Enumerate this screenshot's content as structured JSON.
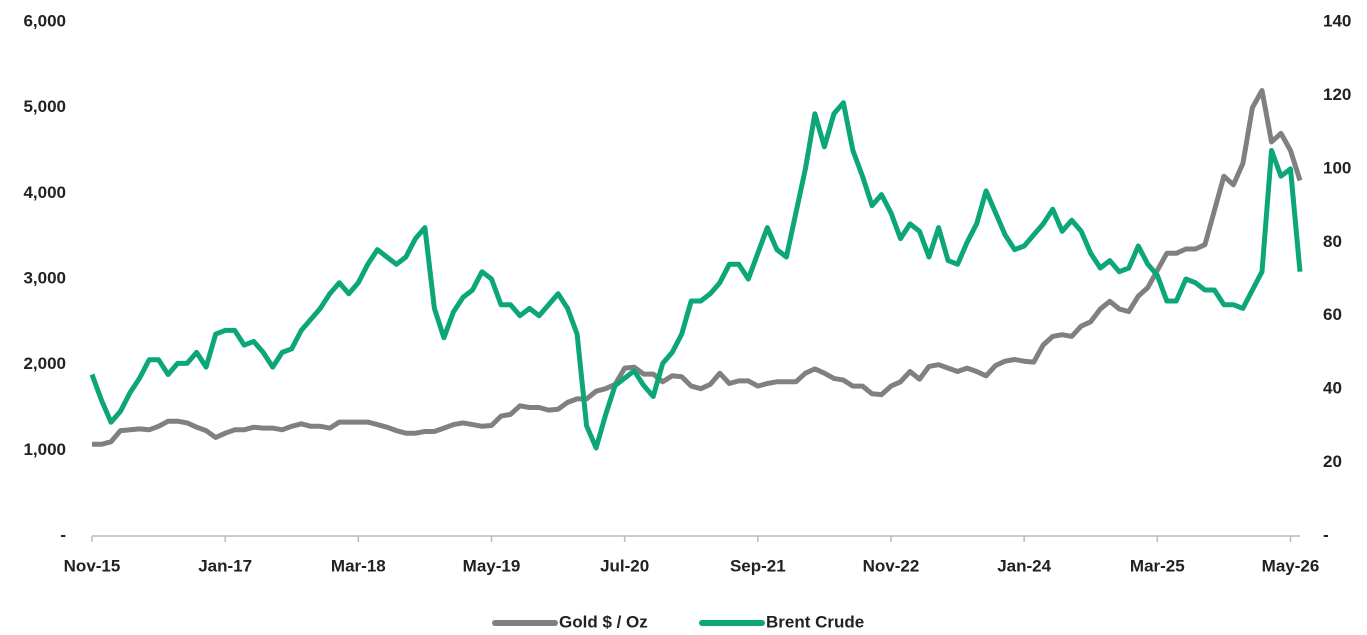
{
  "chart_data": {
    "type": "line",
    "x": [
      "2015-11",
      "2015-12",
      "2016-01",
      "2016-02",
      "2016-03",
      "2016-04",
      "2016-05",
      "2016-06",
      "2016-07",
      "2016-08",
      "2016-09",
      "2016-10",
      "2016-11",
      "2016-12",
      "2017-01",
      "2017-02",
      "2017-03",
      "2017-04",
      "2017-05",
      "2017-06",
      "2017-07",
      "2017-08",
      "2017-09",
      "2017-10",
      "2017-11",
      "2017-12",
      "2018-01",
      "2018-02",
      "2018-03",
      "2018-04",
      "2018-05",
      "2018-06",
      "2018-07",
      "2018-08",
      "2018-09",
      "2018-10",
      "2018-11",
      "2018-12",
      "2019-01",
      "2019-02",
      "2019-03",
      "2019-04",
      "2019-05",
      "2019-06",
      "2019-07",
      "2019-08",
      "2019-09",
      "2019-10",
      "2019-11",
      "2019-12",
      "2020-01",
      "2020-02",
      "2020-03",
      "2020-04",
      "2020-05",
      "2020-06",
      "2020-07",
      "2020-08",
      "2020-09",
      "2020-10",
      "2020-11",
      "2020-12",
      "2021-01",
      "2021-02",
      "2021-03",
      "2021-04",
      "2021-05",
      "2021-06",
      "2021-07",
      "2021-08",
      "2021-09",
      "2021-10",
      "2021-11",
      "2021-12",
      "2022-01",
      "2022-02",
      "2022-03",
      "2022-04",
      "2022-05",
      "2022-06",
      "2022-07",
      "2022-08",
      "2022-09",
      "2022-10",
      "2022-11",
      "2022-12",
      "2023-01",
      "2023-02",
      "2023-03",
      "2023-04",
      "2023-05",
      "2023-06",
      "2023-07",
      "2023-08",
      "2023-09",
      "2023-10",
      "2023-11",
      "2023-12",
      "2024-01",
      "2024-02",
      "2024-03",
      "2024-04",
      "2024-05",
      "2024-06",
      "2024-07",
      "2024-08",
      "2024-09",
      "2024-10",
      "2024-11",
      "2024-12",
      "2025-01",
      "2025-02",
      "2025-03",
      "2025-04",
      "2025-05",
      "2025-06",
      "2025-07",
      "2025-08",
      "2025-09",
      "2025-10",
      "2025-11",
      "2025-12",
      "2026-01",
      "2026-02",
      "2026-03",
      "2026-04",
      "2026-05",
      "2026-06"
    ],
    "series": [
      {
        "name": "Gold $ / Oz",
        "color": "#808080",
        "axis": "y",
        "values": [
          1070,
          1070,
          1100,
          1230,
          1240,
          1250,
          1240,
          1280,
          1340,
          1340,
          1320,
          1270,
          1230,
          1150,
          1200,
          1240,
          1240,
          1270,
          1260,
          1260,
          1240,
          1280,
          1310,
          1280,
          1280,
          1260,
          1330,
          1330,
          1330,
          1330,
          1300,
          1270,
          1230,
          1200,
          1200,
          1220,
          1220,
          1260,
          1300,
          1320,
          1300,
          1280,
          1290,
          1400,
          1420,
          1520,
          1500,
          1500,
          1470,
          1480,
          1560,
          1600,
          1600,
          1690,
          1720,
          1770,
          1960,
          1970,
          1890,
          1890,
          1800,
          1870,
          1860,
          1750,
          1720,
          1770,
          1900,
          1780,
          1810,
          1810,
          1750,
          1780,
          1800,
          1800,
          1800,
          1900,
          1950,
          1900,
          1840,
          1820,
          1750,
          1750,
          1660,
          1650,
          1750,
          1800,
          1920,
          1830,
          1980,
          2000,
          1960,
          1920,
          1960,
          1920,
          1870,
          1990,
          2040,
          2060,
          2040,
          2030,
          2230,
          2330,
          2350,
          2330,
          2450,
          2500,
          2650,
          2740,
          2650,
          2620,
          2800,
          2900,
          3100,
          3300,
          3300,
          3350,
          3350,
          3400,
          3800,
          4200,
          4100,
          4350,
          5000,
          5200,
          4600,
          4700,
          4500,
          4150
        ]
      },
      {
        "name": "Brent Crude",
        "color": "#0ca678",
        "axis": "y2",
        "values": [
          44,
          37,
          31,
          34,
          39,
          43,
          48,
          48,
          44,
          47,
          47,
          50,
          46,
          55,
          56,
          56,
          52,
          53,
          50,
          46,
          50,
          51,
          56,
          59,
          62,
          66,
          69,
          66,
          69,
          74,
          78,
          76,
          74,
          76,
          81,
          84,
          62,
          54,
          61,
          65,
          67,
          72,
          70,
          63,
          63,
          60,
          62,
          60,
          63,
          66,
          62,
          55,
          30,
          24,
          33,
          41,
          43,
          45,
          41,
          38,
          47,
          50,
          55,
          64,
          64,
          66,
          69,
          74,
          74,
          70,
          77,
          84,
          78,
          76,
          88,
          100,
          115,
          106,
          115,
          118,
          105,
          98,
          90,
          93,
          88,
          81,
          85,
          83,
          76,
          84,
          75,
          74,
          80,
          85,
          94,
          88,
          82,
          78,
          79,
          82,
          85,
          89,
          83,
          86,
          83,
          77,
          73,
          75,
          72,
          73,
          79,
          74,
          71,
          64,
          64,
          70,
          69,
          67,
          67,
          63,
          63,
          62,
          67,
          72,
          105,
          98,
          100,
          72
        ]
      }
    ],
    "xlim": [
      "2015-11",
      "2026-06"
    ],
    "xticks": [
      {
        "value": "2015-11",
        "label": "Nov-15"
      },
      {
        "value": "2017-01",
        "label": "Jan-17"
      },
      {
        "value": "2018-03",
        "label": "Mar-18"
      },
      {
        "value": "2019-05",
        "label": "May-19"
      },
      {
        "value": "2020-07",
        "label": "Jul-20"
      },
      {
        "value": "2021-09",
        "label": "Sep-21"
      },
      {
        "value": "2022-11",
        "label": "Nov-22"
      },
      {
        "value": "2024-01",
        "label": "Jan-24"
      },
      {
        "value": "2025-03",
        "label": "Mar-25"
      },
      {
        "value": "2026-05",
        "label": "May-26"
      }
    ],
    "ylim": [
      0,
      6000
    ],
    "yticks": [
      {
        "value": 0,
        "label": "-"
      },
      {
        "value": 1000,
        "label": "1,000"
      },
      {
        "value": 2000,
        "label": "2,000"
      },
      {
        "value": 3000,
        "label": "3,000"
      },
      {
        "value": 4000,
        "label": "4,000"
      },
      {
        "value": 5000,
        "label": "5,000"
      },
      {
        "value": 6000,
        "label": "6,000"
      }
    ],
    "y2lim": [
      0,
      140
    ],
    "y2ticks": [
      {
        "value": 0,
        "label": "-"
      },
      20,
      40,
      60,
      80,
      100,
      120,
      140
    ],
    "legend": "bottom"
  }
}
